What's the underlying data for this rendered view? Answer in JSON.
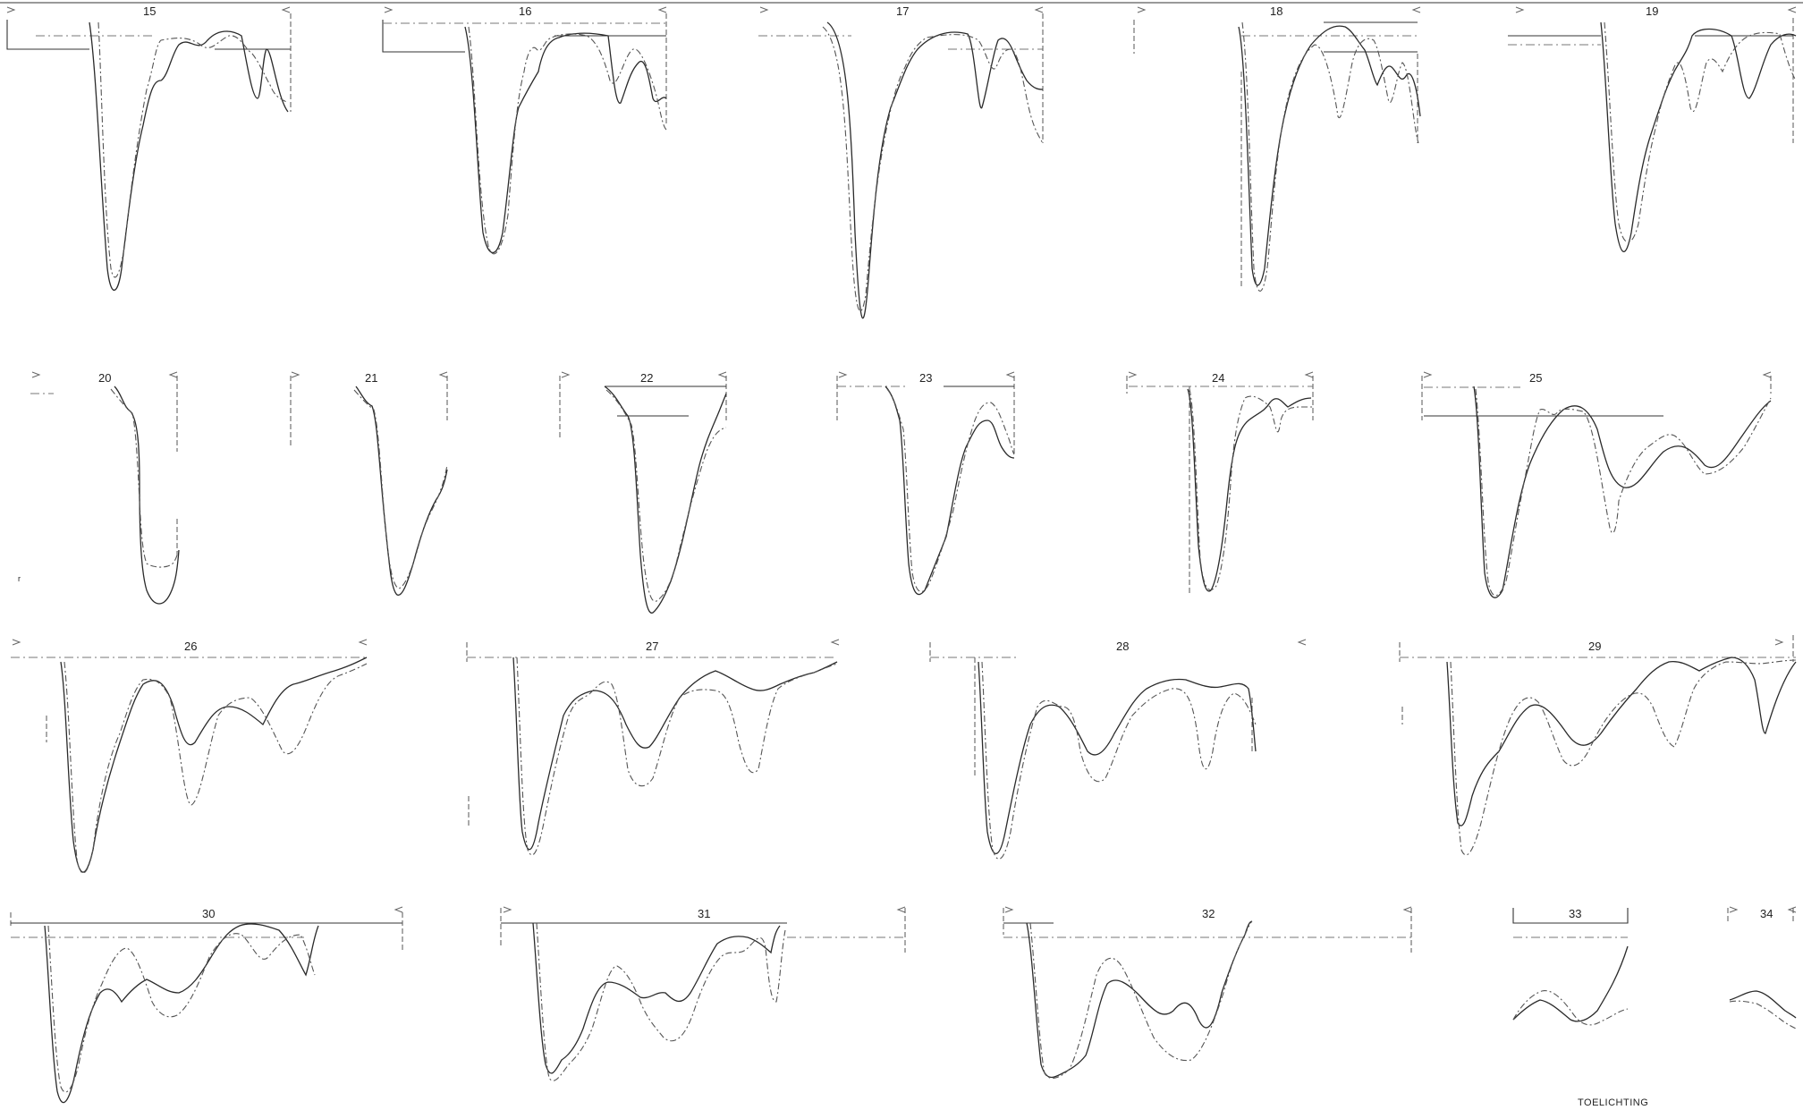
{
  "sheet": {
    "profiles": [
      {
        "label": "15"
      },
      {
        "label": "16"
      },
      {
        "label": "17"
      },
      {
        "label": "18"
      },
      {
        "label": "19"
      },
      {
        "label": "20"
      },
      {
        "label": "21"
      },
      {
        "label": "22"
      },
      {
        "label": "23"
      },
      {
        "label": "24"
      },
      {
        "label": "25"
      },
      {
        "label": "26"
      },
      {
        "label": "27"
      },
      {
        "label": "28"
      },
      {
        "label": "29"
      },
      {
        "label": "30"
      },
      {
        "label": "31"
      },
      {
        "label": "32"
      },
      {
        "label": "33"
      },
      {
        "label": "34"
      }
    ],
    "caption": "TOELICHTING"
  }
}
